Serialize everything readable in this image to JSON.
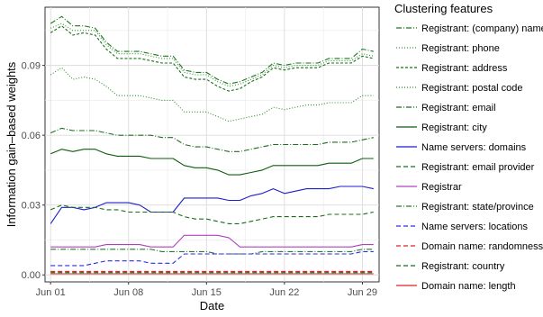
{
  "chart_data": {
    "type": "line",
    "xlabel": "Date",
    "ylabel": "Information gain–based weights",
    "x_ticks": [
      "Jun 01",
      "Jun 08",
      "Jun 15",
      "Jun 22",
      "Jun 29"
    ],
    "y_ticks": [
      "0.00",
      "0.03",
      "0.06",
      "0.09"
    ],
    "ylim": [
      -0.003,
      0.115
    ],
    "x": [
      "2020-06-01",
      "2020-06-02",
      "2020-06-03",
      "2020-06-04",
      "2020-06-05",
      "2020-06-06",
      "2020-06-07",
      "2020-06-08",
      "2020-06-09",
      "2020-06-10",
      "2020-06-11",
      "2020-06-12",
      "2020-06-13",
      "2020-06-14",
      "2020-06-15",
      "2020-06-16",
      "2020-06-17",
      "2020-06-18",
      "2020-06-19",
      "2020-06-20",
      "2020-06-21",
      "2020-06-22",
      "2020-06-23",
      "2020-06-24",
      "2020-06-25",
      "2020-06-26",
      "2020-06-27",
      "2020-06-28",
      "2020-06-29",
      "2020-06-30"
    ],
    "grid": true,
    "legend_position": "right",
    "legend_title": "Clustering features",
    "series": [
      {
        "name": "Registrant: (company) name",
        "color": "#1a7a1a",
        "dash": "dashdot",
        "values": [
          0.108,
          0.111,
          0.107,
          0.107,
          0.106,
          0.1,
          0.096,
          0.096,
          0.096,
          0.095,
          0.094,
          0.094,
          0.088,
          0.087,
          0.087,
          0.084,
          0.082,
          0.083,
          0.085,
          0.087,
          0.091,
          0.09,
          0.091,
          0.091,
          0.091,
          0.093,
          0.093,
          0.093,
          0.097,
          0.096
        ]
      },
      {
        "name": "Registrant: phone",
        "color": "#3a8f3a",
        "dash": "dotted",
        "values": [
          0.106,
          0.108,
          0.105,
          0.105,
          0.105,
          0.099,
          0.095,
          0.095,
          0.095,
          0.094,
          0.093,
          0.093,
          0.087,
          0.086,
          0.086,
          0.083,
          0.081,
          0.082,
          0.084,
          0.086,
          0.09,
          0.089,
          0.09,
          0.09,
          0.09,
          0.092,
          0.092,
          0.092,
          0.095,
          0.094
        ]
      },
      {
        "name": "Registrant: address",
        "color": "#157015",
        "dash": "dashed-short",
        "values": [
          0.104,
          0.107,
          0.103,
          0.104,
          0.103,
          0.097,
          0.093,
          0.093,
          0.093,
          0.092,
          0.091,
          0.091,
          0.085,
          0.084,
          0.084,
          0.081,
          0.079,
          0.08,
          0.083,
          0.085,
          0.089,
          0.088,
          0.089,
          0.089,
          0.089,
          0.091,
          0.091,
          0.091,
          0.094,
          0.093
        ]
      },
      {
        "name": "Registrant: postal code",
        "color": "#2e8b2e",
        "dash": "dotted",
        "values": [
          0.086,
          0.089,
          0.084,
          0.085,
          0.084,
          0.081,
          0.077,
          0.077,
          0.077,
          0.076,
          0.075,
          0.075,
          0.07,
          0.07,
          0.07,
          0.068,
          0.066,
          0.067,
          0.068,
          0.069,
          0.072,
          0.071,
          0.072,
          0.073,
          0.073,
          0.074,
          0.074,
          0.074,
          0.077,
          0.077
        ]
      },
      {
        "name": "Registrant: email",
        "color": "#1e6e1e",
        "dash": "dashdot",
        "values": [
          0.061,
          0.063,
          0.062,
          0.062,
          0.062,
          0.061,
          0.06,
          0.06,
          0.06,
          0.06,
          0.059,
          0.059,
          0.056,
          0.055,
          0.055,
          0.054,
          0.053,
          0.053,
          0.054,
          0.055,
          0.056,
          0.056,
          0.056,
          0.056,
          0.056,
          0.057,
          0.057,
          0.057,
          0.058,
          0.059
        ]
      },
      {
        "name": "Registrant: city",
        "color": "#0f5c0f",
        "dash": "solid",
        "values": [
          0.052,
          0.054,
          0.053,
          0.054,
          0.054,
          0.052,
          0.051,
          0.051,
          0.051,
          0.05,
          0.05,
          0.05,
          0.047,
          0.046,
          0.046,
          0.045,
          0.043,
          0.043,
          0.044,
          0.045,
          0.047,
          0.047,
          0.047,
          0.047,
          0.047,
          0.048,
          0.048,
          0.048,
          0.05,
          0.05
        ]
      },
      {
        "name": "Name servers: domains",
        "color": "#1f1fcc",
        "dash": "solid",
        "values": [
          0.022,
          0.029,
          0.029,
          0.028,
          0.029,
          0.031,
          0.031,
          0.031,
          0.03,
          0.027,
          0.027,
          0.027,
          0.033,
          0.033,
          0.033,
          0.033,
          0.032,
          0.032,
          0.034,
          0.035,
          0.037,
          0.035,
          0.036,
          0.037,
          0.037,
          0.037,
          0.038,
          0.038,
          0.038,
          0.037
        ]
      },
      {
        "name": "Registrant: email provider",
        "color": "#1a6e1a",
        "dash": "dashed",
        "values": [
          0.028,
          0.03,
          0.029,
          0.029,
          0.029,
          0.028,
          0.028,
          0.027,
          0.027,
          0.027,
          0.027,
          0.027,
          0.025,
          0.024,
          0.024,
          0.023,
          0.022,
          0.022,
          0.023,
          0.024,
          0.025,
          0.025,
          0.025,
          0.025,
          0.025,
          0.026,
          0.026,
          0.026,
          0.026,
          0.027
        ]
      },
      {
        "name": "Registrar",
        "color": "#b040c0",
        "dash": "solid",
        "values": [
          0.012,
          0.012,
          0.012,
          0.012,
          0.012,
          0.013,
          0.013,
          0.013,
          0.013,
          0.012,
          0.012,
          0.012,
          0.017,
          0.017,
          0.017,
          0.017,
          0.016,
          0.012,
          0.012,
          0.012,
          0.012,
          0.012,
          0.012,
          0.012,
          0.012,
          0.012,
          0.012,
          0.012,
          0.013,
          0.013
        ]
      },
      {
        "name": "Registrant: state/province",
        "color": "#2a7a2a",
        "dash": "dashdot",
        "values": [
          0.011,
          0.011,
          0.011,
          0.011,
          0.011,
          0.011,
          0.011,
          0.011,
          0.011,
          0.011,
          0.01,
          0.01,
          0.01,
          0.01,
          0.01,
          0.009,
          0.009,
          0.009,
          0.009,
          0.01,
          0.01,
          0.01,
          0.01,
          0.01,
          0.01,
          0.01,
          0.01,
          0.01,
          0.011,
          0.011
        ]
      },
      {
        "name": "Name servers: locations",
        "color": "#2a2aee",
        "dash": "dashed",
        "values": [
          0.004,
          0.004,
          0.004,
          0.004,
          0.005,
          0.006,
          0.006,
          0.006,
          0.006,
          0.005,
          0.005,
          0.005,
          0.009,
          0.009,
          0.009,
          0.009,
          0.009,
          0.009,
          0.009,
          0.009,
          0.009,
          0.009,
          0.009,
          0.009,
          0.009,
          0.009,
          0.009,
          0.009,
          0.01,
          0.01
        ]
      },
      {
        "name": "Domain name: randomness",
        "color": "#e02020",
        "dash": "dashed",
        "values": [
          0.0015,
          0.0015,
          0.0015,
          0.0015,
          0.0015,
          0.0015,
          0.0015,
          0.0015,
          0.0015,
          0.0015,
          0.0015,
          0.0015,
          0.0015,
          0.0015,
          0.0015,
          0.0015,
          0.0015,
          0.0015,
          0.0015,
          0.0015,
          0.0015,
          0.0015,
          0.0015,
          0.0015,
          0.0015,
          0.0015,
          0.0015,
          0.0015,
          0.0015,
          0.0015
        ]
      },
      {
        "name": "Registrant: country",
        "color": "#1a6a1a",
        "dash": "dashed",
        "values": [
          0.001,
          0.001,
          0.001,
          0.001,
          0.001,
          0.001,
          0.001,
          0.001,
          0.001,
          0.001,
          0.001,
          0.001,
          0.001,
          0.001,
          0.001,
          0.001,
          0.001,
          0.001,
          0.001,
          0.001,
          0.001,
          0.001,
          0.001,
          0.001,
          0.001,
          0.001,
          0.001,
          0.001,
          0.001,
          0.001
        ]
      },
      {
        "name": "Domain name: length",
        "color": "#e02020",
        "dash": "solid",
        "values": [
          0.0005,
          0.0005,
          0.0005,
          0.0005,
          0.0005,
          0.0005,
          0.0005,
          0.0005,
          0.0005,
          0.0005,
          0.0005,
          0.0005,
          0.0005,
          0.0005,
          0.0005,
          0.0005,
          0.0005,
          0.0005,
          0.0005,
          0.0005,
          0.0005,
          0.0005,
          0.0005,
          0.0005,
          0.0005,
          0.0005,
          0.0005,
          0.0005,
          0.0005,
          0.0005
        ]
      }
    ]
  }
}
